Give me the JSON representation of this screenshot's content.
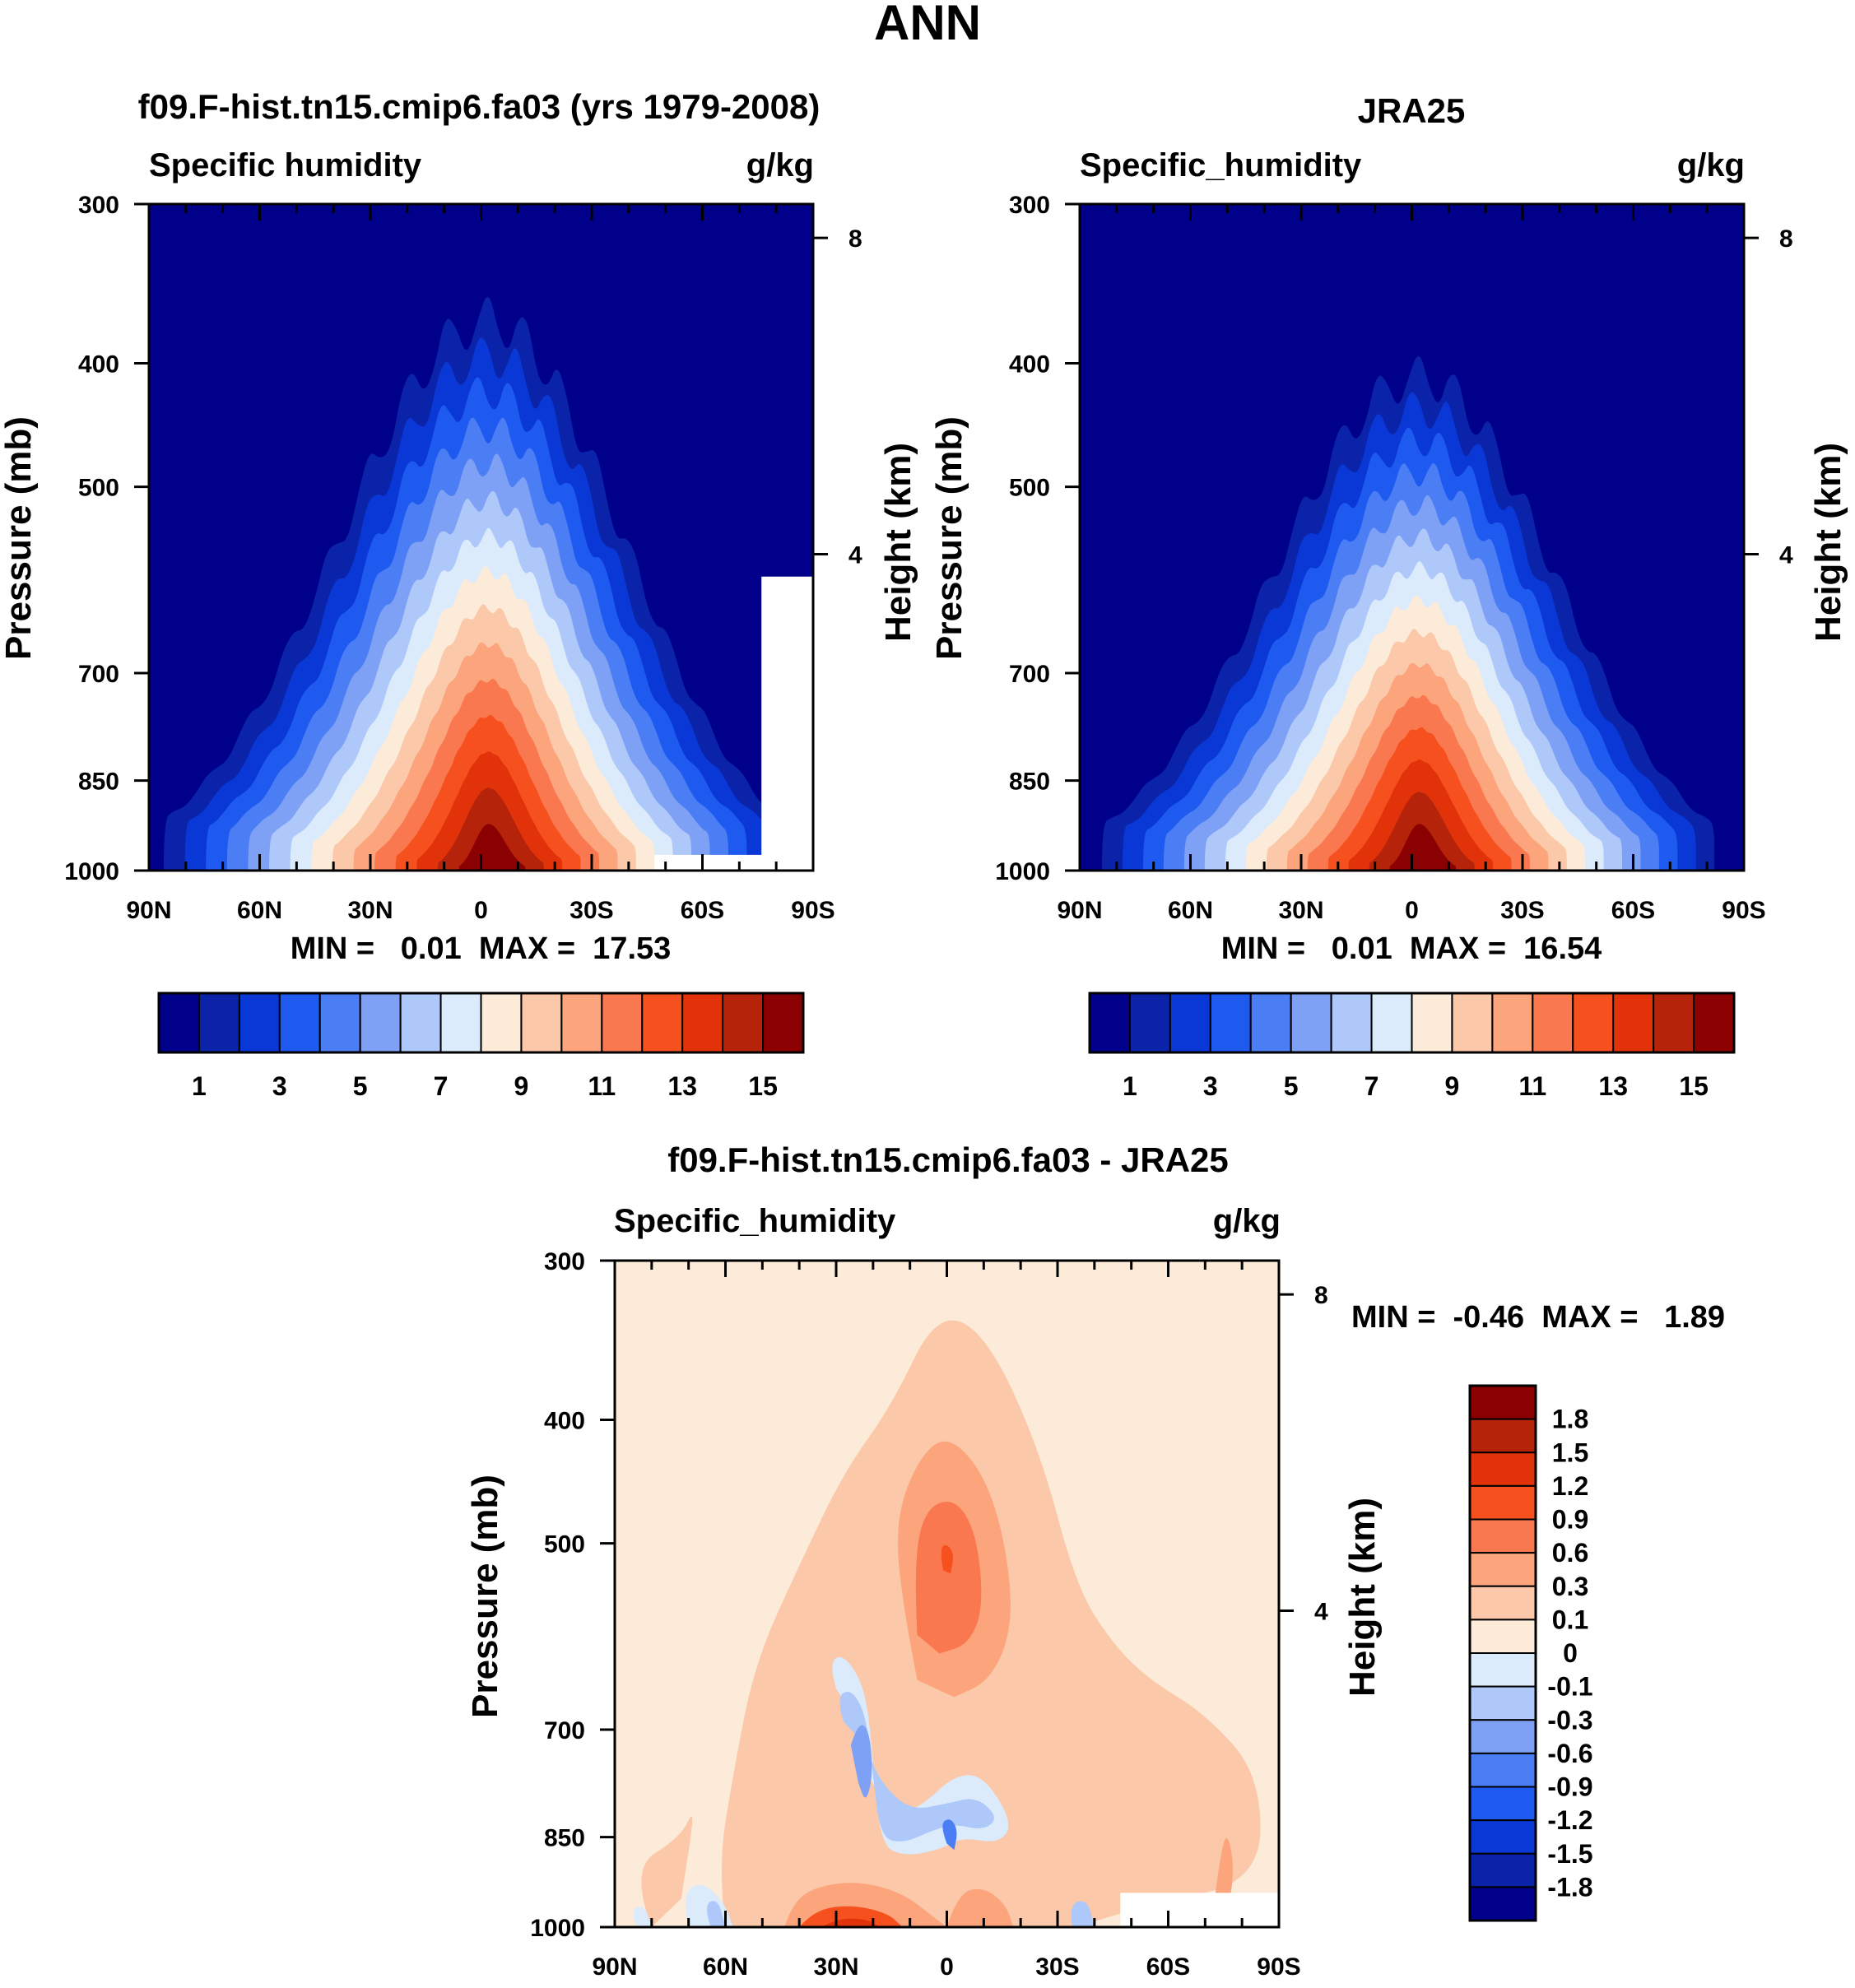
{
  "main_title": "ANN",
  "panels": [
    {
      "id": "model",
      "title": "f09.F-hist.tn15.cmip6.fa03 (yrs 1979-2008)",
      "left_label": "Specific humidity",
      "right_label": "g/kg",
      "ylabel": "Pressure (mb)",
      "ylabel_right": "Height (km)",
      "stats": "MIN =   0.01  MAX =  17.53"
    },
    {
      "id": "obs",
      "title": "JRA25",
      "left_label": "Specific_humidity",
      "right_label": "g/kg",
      "ylabel": "Pressure (mb)",
      "ylabel_right": "Height (km)",
      "stats": "MIN =   0.01  MAX =  16.54"
    },
    {
      "id": "diff",
      "title": "f09.F-hist.tn15.cmip6.fa03 - JRA25",
      "left_label": "Specific_humidity",
      "right_label": "g/kg",
      "ylabel": "Pressure (mb)",
      "ylabel_right": "Height (km)",
      "stats": "MIN =  -0.46  MAX =   1.89"
    }
  ],
  "chart_data": [
    {
      "type": "heatmap",
      "subtype": "filled-contour latitude-pressure cross section",
      "title": "f09.F-hist.tn15.cmip6.fa03 (yrs 1979-2008)",
      "variable": "Specific humidity",
      "units": "g/kg",
      "x_ticks": [
        "90N",
        "60N",
        "30N",
        "0",
        "30S",
        "60S",
        "90S"
      ],
      "x_values": [
        90,
        60,
        30,
        0,
        -30,
        -60,
        -90
      ],
      "y_ticks": [
        300,
        400,
        500,
        700,
        850,
        1000
      ],
      "y_right_ticks": [
        8,
        4
      ],
      "ylim": [
        1000,
        300
      ],
      "yscale": "log",
      "xlabel": "",
      "ylabel": "Pressure (mb)",
      "ylabel_right": "Height (km)",
      "min": 0.01,
      "max": 17.53,
      "contour_levels": [
        1,
        2,
        3,
        4,
        5,
        6,
        7,
        8,
        9,
        10,
        11,
        12,
        13,
        14,
        15
      ],
      "colorbar_labels": [
        "1",
        "3",
        "5",
        "7",
        "9",
        "11",
        "13",
        "15"
      ],
      "peak": {
        "lat": -2,
        "pressure": 1000
      },
      "top_contour_pressure": 370
    },
    {
      "type": "heatmap",
      "subtype": "filled-contour latitude-pressure cross section",
      "title": "JRA25",
      "variable": "Specific_humidity",
      "units": "g/kg",
      "x_ticks": [
        "90N",
        "60N",
        "30N",
        "0",
        "30S",
        "60S",
        "90S"
      ],
      "x_values": [
        90,
        60,
        30,
        0,
        -30,
        -60,
        -90
      ],
      "y_ticks": [
        300,
        400,
        500,
        700,
        850,
        1000
      ],
      "y_right_ticks": [
        8,
        4
      ],
      "ylim": [
        1000,
        300
      ],
      "yscale": "log",
      "xlabel": "",
      "ylabel": "Pressure (mb)",
      "ylabel_right": "Height (km)",
      "min": 0.01,
      "max": 16.54,
      "contour_levels": [
        1,
        2,
        3,
        4,
        5,
        6,
        7,
        8,
        9,
        10,
        11,
        12,
        13,
        14,
        15
      ],
      "colorbar_labels": [
        "1",
        "3",
        "5",
        "7",
        "9",
        "11",
        "13",
        "15"
      ],
      "peak": {
        "lat": -2,
        "pressure": 1000
      },
      "top_contour_pressure": 410
    },
    {
      "type": "heatmap",
      "subtype": "filled-contour difference cross section",
      "title": "f09.F-hist.tn15.cmip6.fa03 - JRA25",
      "variable": "Specific_humidity",
      "units": "g/kg",
      "x_ticks": [
        "90N",
        "60N",
        "30N",
        "0",
        "30S",
        "60S",
        "90S"
      ],
      "x_values": [
        90,
        60,
        30,
        0,
        -30,
        -60,
        -90
      ],
      "y_ticks": [
        300,
        400,
        500,
        700,
        850,
        1000
      ],
      "y_right_ticks": [
        8,
        4
      ],
      "ylim": [
        1000,
        300
      ],
      "yscale": "log",
      "xlabel": "",
      "ylabel": "Pressure (mb)",
      "ylabel_right": "Height (km)",
      "min": -0.46,
      "max": 1.89,
      "contour_levels": [
        -1.8,
        -1.5,
        -1.2,
        -0.9,
        -0.6,
        -0.3,
        -0.1,
        0,
        0.1,
        0.3,
        0.6,
        0.9,
        1.2,
        1.5,
        1.8
      ],
      "colorbar_labels": [
        "1.8",
        "1.5",
        "1.2",
        "0.9",
        "0.6",
        "0.3",
        "0.1",
        "0",
        "-0.1",
        "-0.3",
        "-0.6",
        "-0.9",
        "-1.2",
        "-1.5",
        "-1.8"
      ]
    }
  ],
  "colors": {
    "seq": [
      "#00008b",
      "#0a23a8",
      "#0a38d6",
      "#1e5af0",
      "#4b7ef5",
      "#7ea0f5",
      "#aec8fa",
      "#dcebfc",
      "#fdebd9",
      "#fbc8aa",
      "#fca47c",
      "#fa7850",
      "#f5501e",
      "#e1320a",
      "#b4230a",
      "#8b0000"
    ],
    "div": [
      "#8b0000",
      "#b4230a",
      "#e1320a",
      "#f5501e",
      "#fa7850",
      "#fca47c",
      "#fbc8aa",
      "#fdebd9",
      "#dcebfc",
      "#aec8fa",
      "#7ea0f5",
      "#4b7ef5",
      "#1e5af0",
      "#0a38d6",
      "#0a23a8",
      "#00008b"
    ],
    "missing": "#ffffff"
  }
}
